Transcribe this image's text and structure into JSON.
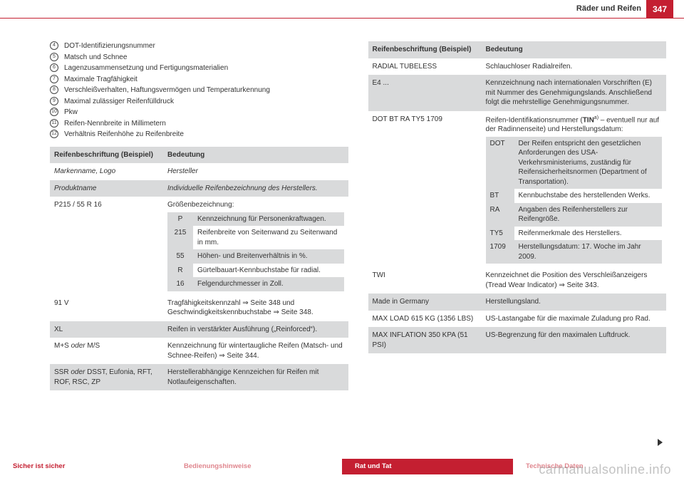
{
  "header": {
    "title": "Räder und Reifen",
    "pageNumber": "347"
  },
  "list": [
    {
      "n": "4",
      "text": "DOT-Identifizierungsnummer"
    },
    {
      "n": "5",
      "text": "Matsch und Schnee"
    },
    {
      "n": "6",
      "text": "Lagenzusammensetzung und Fertigungsmaterialien"
    },
    {
      "n": "7",
      "text": "Maximale Tragfähigkeit"
    },
    {
      "n": "8",
      "text": "Verschleißverhalten, Haftungsvermögen und Temperaturkennung"
    },
    {
      "n": "9",
      "text": "Maximal zulässiger Reifenfülldruck"
    },
    {
      "n": "10",
      "text": "Pkw"
    },
    {
      "n": "11",
      "text": "Reifen-Nennbreite in Millimetern"
    },
    {
      "n": "12",
      "text": "Verhältnis Reifenhöhe zu Reifenbreite"
    }
  ],
  "tableLeft": {
    "head1": "Reifenbeschriftung (Beispiel)",
    "head2": "Bedeutung",
    "rows": [
      {
        "k": "Markenname, Logo",
        "v": "Hersteller",
        "cls": "row-white",
        "italic": true
      },
      {
        "k": "Produktname",
        "v": "Individuelle Reifenbezeichnung des Herstellers.",
        "cls": "row-grey",
        "italic": true
      },
      {
        "k": "P215 / 55 R 16",
        "v": "Größenbezeichnung:",
        "cls": "row-white",
        "sub": [
          {
            "k": "P",
            "v": "Kennzeichnung für Personenkraftwagen."
          },
          {
            "k": "215",
            "v": "Reifenbreite von Seitenwand zu Seitenwand in mm."
          },
          {
            "k": "55",
            "v": "Höhen- und Breitenverhältnis in %."
          },
          {
            "k": "R",
            "v": "Gürtelbauart-Kennbuchstabe für radial."
          },
          {
            "k": "16",
            "v": "Felgendurchmesser in Zoll."
          }
        ]
      },
      {
        "k": "91 V",
        "v": "Tragfähigkeitskennzahl ⇒ Seite 348 und Geschwindigkeitskennbuchstabe ⇒ Seite 348.",
        "cls": "row-white"
      },
      {
        "k": "XL",
        "v": "Reifen in verstärkter Ausführung („Reinforced“).",
        "cls": "row-grey"
      },
      {
        "k": "M+S oder M/S",
        "v": "Kennzeichnung für wintertaugliche Reifen (Matsch- und Schnee-Reifen) ⇒ Seite 344.",
        "cls": "row-white",
        "italicPart": "oder"
      },
      {
        "k": "SSR oder DSST, Eufonia, RFT, ROF, RSC, ZP",
        "v": "Herstellerabhängige Kennzeichen für Reifen mit Notlaufeigenschaften.",
        "cls": "row-grey",
        "italicPart": "oder"
      }
    ]
  },
  "tableRight": {
    "head1": "Reifenbeschriftung (Beispiel)",
    "head2": "Bedeutung",
    "rows": [
      {
        "k": "RADIAL TUBELESS",
        "v": "Schlauchloser Radialreifen.",
        "cls": "row-white"
      },
      {
        "k": "E4 ...",
        "v": "Kennzeichnung nach internationalen Vorschriften (E) mit Nummer des Genehmigungslands. Anschließend folgt die mehrstellige Genehmigungsnummer.",
        "cls": "row-grey"
      },
      {
        "k": "DOT BT RA TY5 1709",
        "vHtml": true,
        "cls": "row-white",
        "sub": [
          {
            "k": "DOT",
            "v": "Der Reifen entspricht den gesetzlichen Anforderungen des USA-Verkehrsministeriums, zuständig für Reifensicherheitsnormen (Department of Transportation)."
          },
          {
            "k": "BT",
            "v": "Kennbuchstabe des herstellenden Werks."
          },
          {
            "k": "RA",
            "v": "Angaben des Reifenherstellers zur Reifengröße."
          },
          {
            "k": "TY5",
            "v": "Reifenmerkmale des Herstellers."
          },
          {
            "k": "1709",
            "v": "Herstellungsdatum: 17. Woche im Jahr 2009."
          }
        ]
      },
      {
        "k": "TWI",
        "v": "Kennzeichnet die Position des Verschleißanzeigers (Tread Wear Indicator) ⇒ Seite 343.",
        "cls": "row-white"
      },
      {
        "k": "Made in Germany",
        "v": "Herstellungsland.",
        "cls": "row-grey"
      },
      {
        "k": "MAX LOAD 615 KG (1356 LBS)",
        "v": "US-Lastangabe für die maximale Zuladung pro Rad.",
        "cls": "row-white"
      },
      {
        "k": "MAX INFLATION 350 KPA (51 PSI)",
        "v": "US-Begrenzung für den maximalen Luftdruck.",
        "cls": "row-grey"
      }
    ]
  },
  "footer": {
    "tabs": [
      {
        "label": "Sicher ist sicher",
        "cls": "tab-red-bold"
      },
      {
        "label": "Bedienungshinweise",
        "cls": "tab-red-light"
      },
      {
        "label": "Rat und Tat",
        "cls": "tab-active"
      },
      {
        "label": "Technische Daten",
        "cls": "tab-red-light"
      }
    ]
  },
  "watermark": "carmanualsonline.info"
}
